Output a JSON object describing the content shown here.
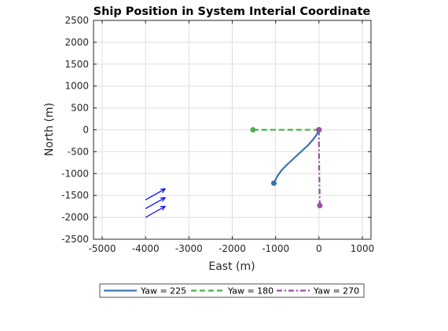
{
  "chart_data": {
    "type": "line",
    "title": "Ship Position in System Interial Coordinate",
    "xlabel": "East (m)",
    "ylabel": "North (m)",
    "xlim": [
      -5200,
      1200
    ],
    "ylim": [
      -2500,
      2500
    ],
    "x_ticks": [
      -5000,
      -4000,
      -3000,
      -2000,
      -1000,
      0,
      1000
    ],
    "y_ticks": [
      2500,
      2000,
      1500,
      1000,
      500,
      0,
      -500,
      -1000,
      -1500,
      -2000,
      -2500
    ],
    "grid": true,
    "legend_position": "bottom-outside",
    "series": [
      {
        "name": "Yaw = 225",
        "color": "#3a75b0",
        "line_style": "solid",
        "x": [
          0,
          -60,
          -150,
          -260,
          -380,
          -500,
          -620,
          -740,
          -860,
          -960,
          -1040
        ],
        "y": [
          0,
          -120,
          -240,
          -360,
          -470,
          -580,
          -690,
          -800,
          -920,
          -1060,
          -1220
        ]
      },
      {
        "name": "Yaw = 180",
        "color": "#4daf4a",
        "line_style": "dashed",
        "x": [
          0,
          -1520
        ],
        "y": [
          0,
          0
        ]
      },
      {
        "name": "Yaw = 270",
        "color": "#984ea3",
        "line_style": "dashdot",
        "x": [
          0,
          0,
          10,
          20
        ],
        "y": [
          0,
          -400,
          -1200,
          -1730
        ]
      }
    ],
    "wind_arrows": {
      "color": "#0000ff",
      "items": [
        {
          "x0": -4000,
          "y0": -1600,
          "x1": -3550,
          "y1": -1350
        },
        {
          "x0": -4000,
          "y0": -1800,
          "x1": -3550,
          "y1": -1550
        },
        {
          "x0": -4000,
          "y0": -2000,
          "x1": -3550,
          "y1": -1750
        }
      ]
    }
  }
}
